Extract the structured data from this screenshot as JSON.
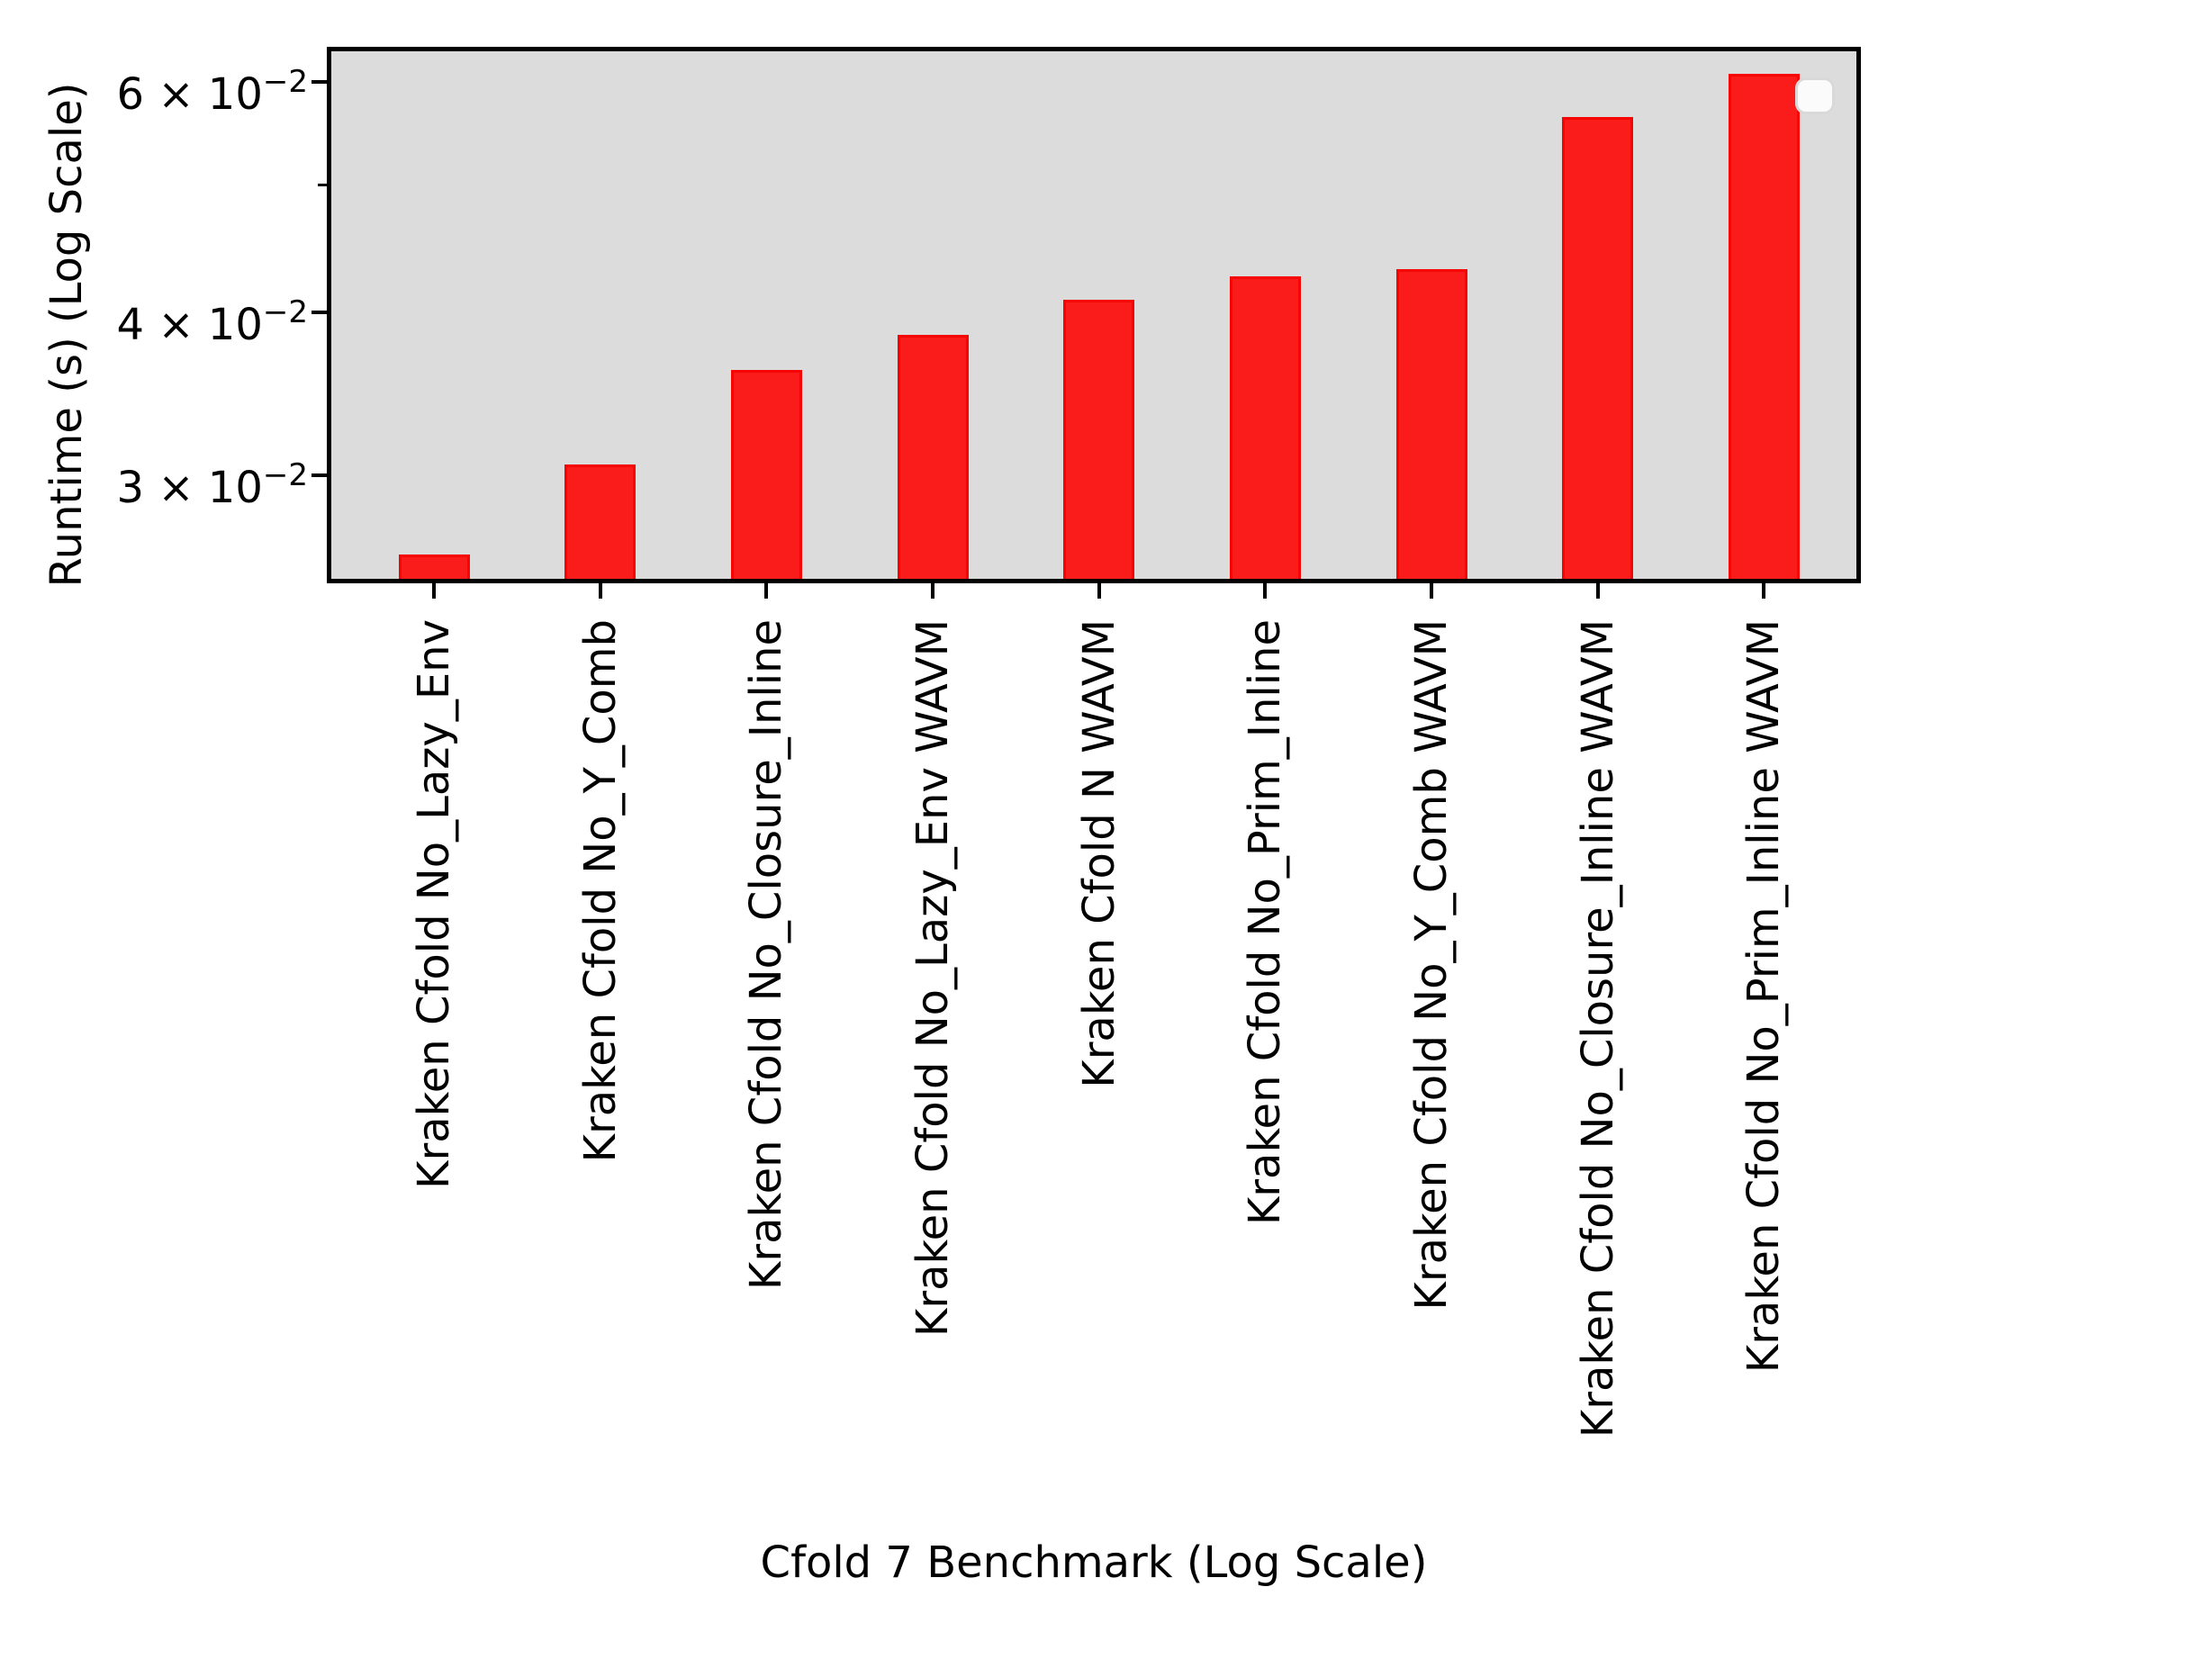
{
  "chart_data": {
    "type": "bar",
    "title": "",
    "xlabel": "Cfold 7 Benchmark (Log Scale)",
    "ylabel": "Runtime (s) (Log Scale)",
    "yscale": "log",
    "ylim": [
      0.025,
      0.0633
    ],
    "grid": false,
    "legend": {
      "visible": true,
      "items": [],
      "position": "upper right"
    },
    "categories": [
      "Kraken Cfold No_Lazy_Env",
      "Kraken Cfold No_Y_Comb",
      "Kraken Cfold No_Closure_Inline",
      "Kraken Cfold No_Lazy_Env WAVM",
      "Kraken Cfold N WAVM",
      "Kraken Cfold No_Prim_Inline",
      "Kraken Cfold No_Y_Comb WAVM",
      "Kraken Cfold No_Closure_Inline WAVM",
      "Kraken Cfold No_Prim_Inline WAVM"
    ],
    "values": [
      0.0261,
      0.0306,
      0.0361,
      0.0384,
      0.0409,
      0.0426,
      0.0431,
      0.0564,
      0.0608
    ],
    "y_ticks": [
      {
        "base": "6 × 10",
        "exp": "−2",
        "value": 0.06
      },
      {
        "base": "4 × 10",
        "exp": "−2",
        "value": 0.04
      },
      {
        "base": "3 × 10",
        "exp": "−2",
        "value": 0.03
      }
    ],
    "y_minor_ticks": [
      0.05
    ],
    "colors": {
      "bar_fill": "#fa1b1b",
      "bar_edge": "#f60505",
      "plot_background": "#dcdcdc",
      "spine": "#000000",
      "text": "#000000",
      "legend_fill": "#fbfbfb",
      "legend_border": "#d9d9d9"
    }
  }
}
